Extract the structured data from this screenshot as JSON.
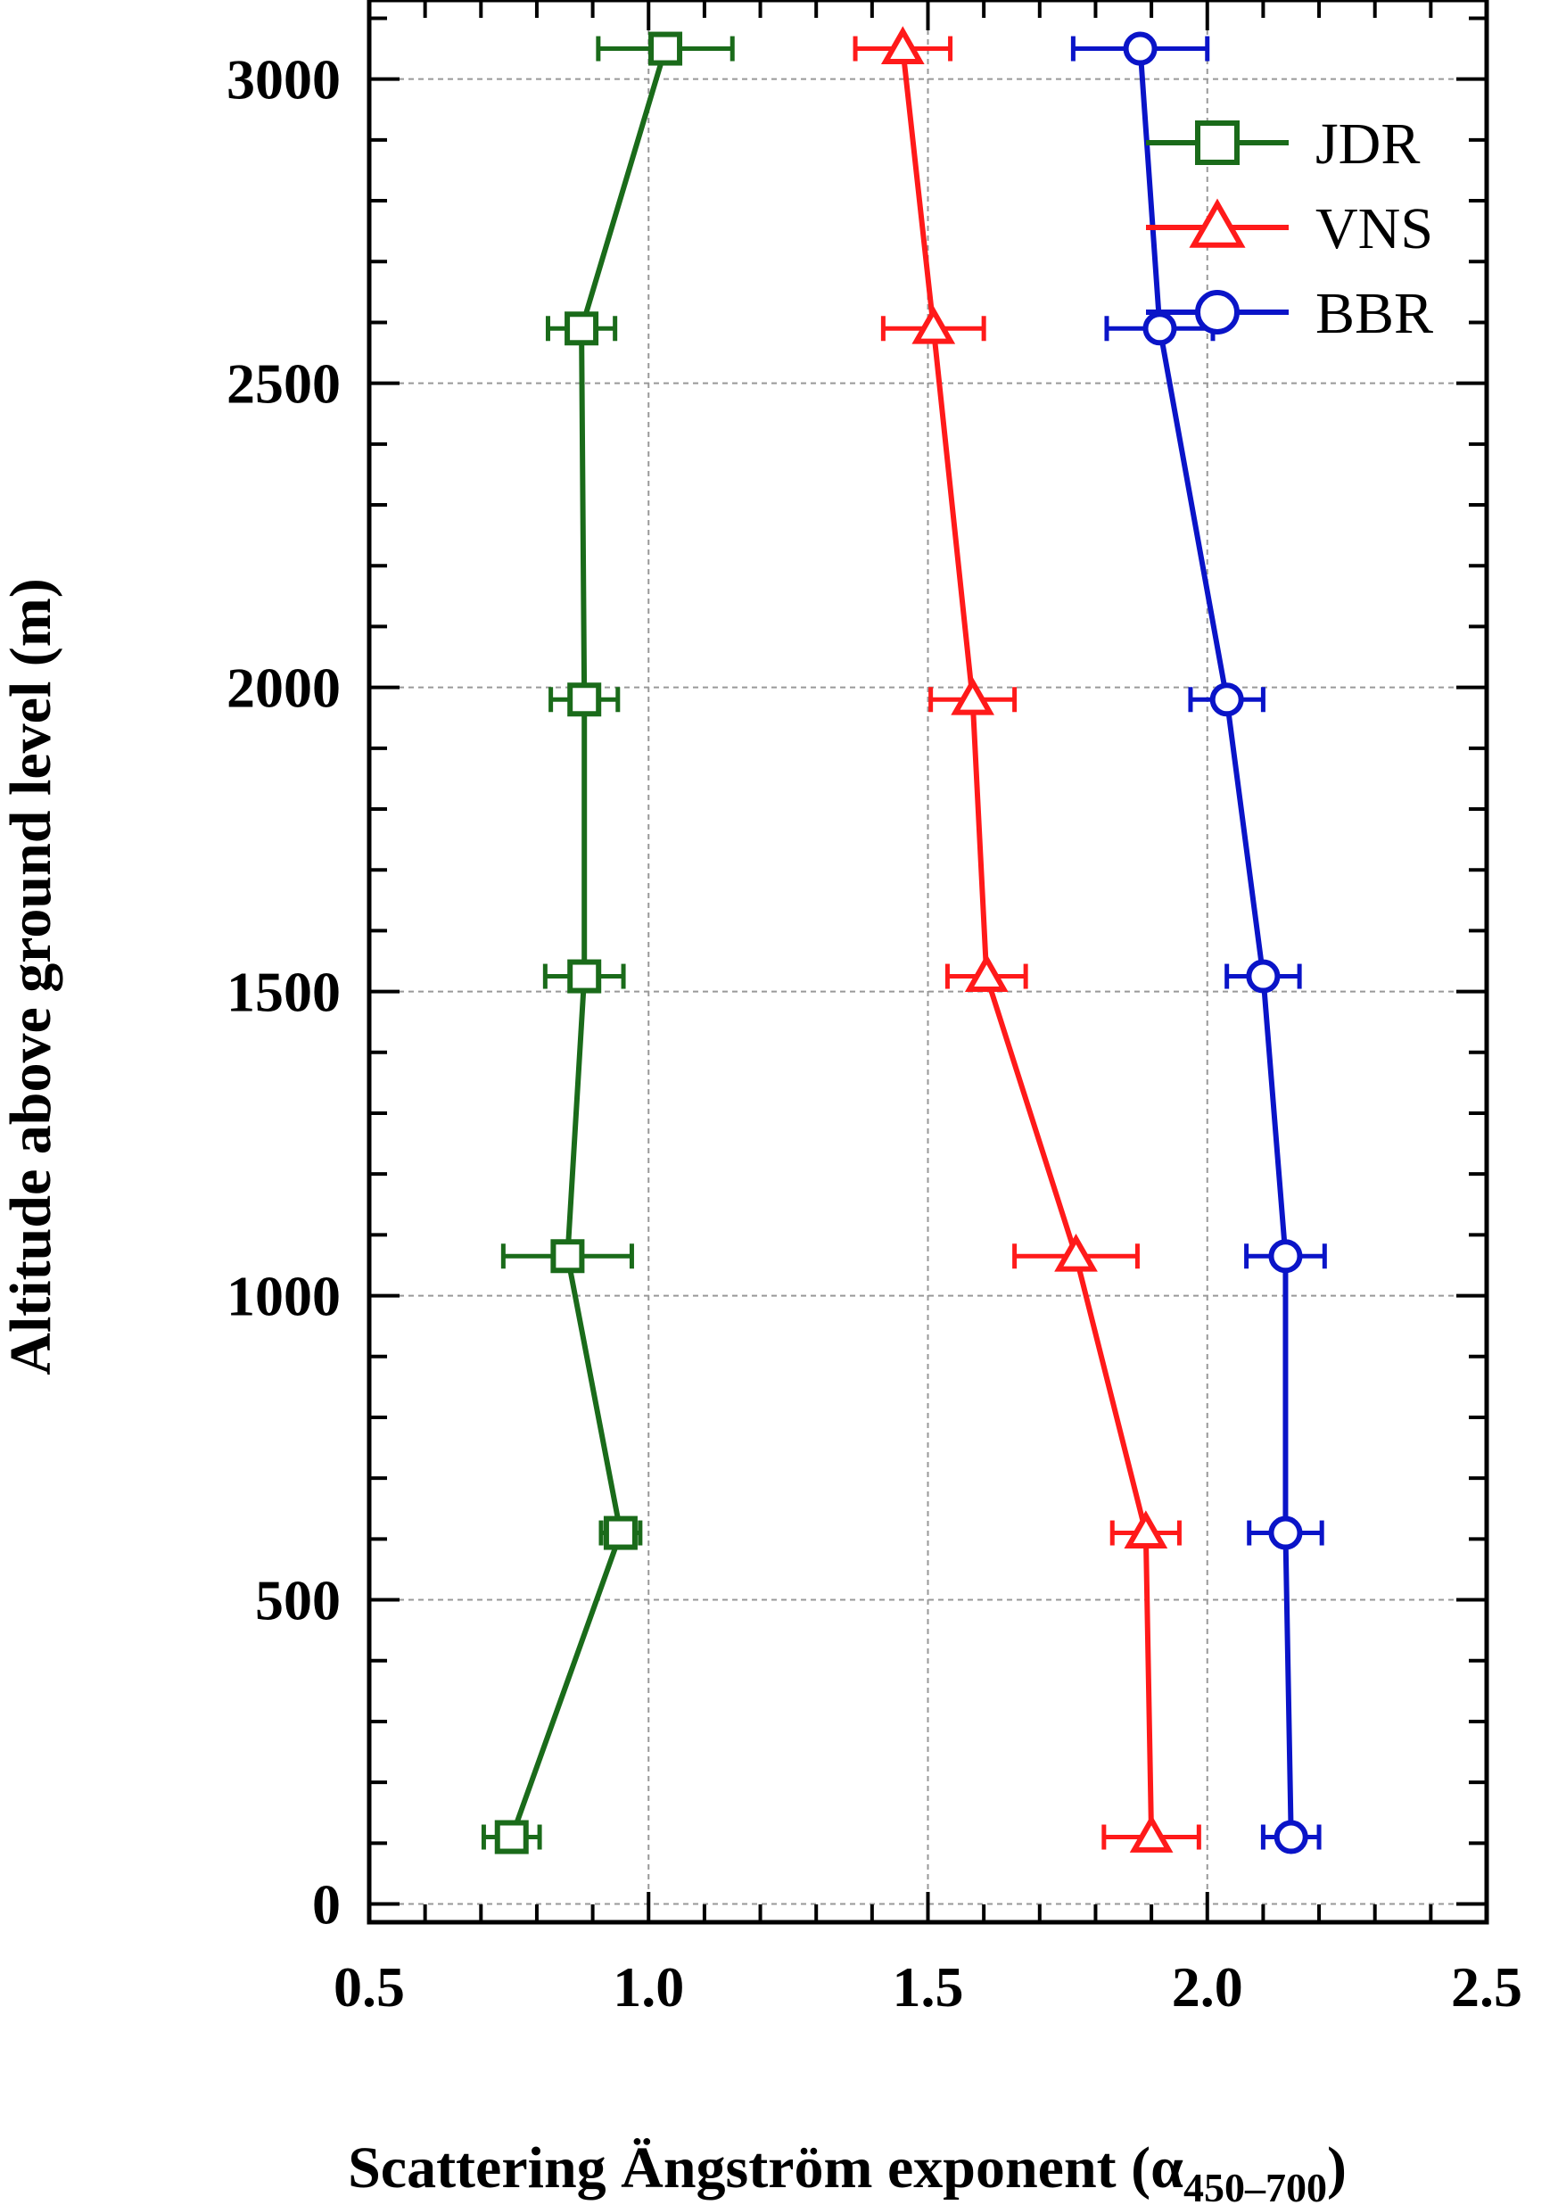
{
  "chart_data": {
    "type": "line",
    "xlabel": "Scattering Ängström exponent (α",
    "xlabel_subscript": "450–700",
    "xlabel_close": ")",
    "ylabel": "Altitude above ground level (m)",
    "xlim": [
      0.5,
      2.5
    ],
    "ylim": [
      -30,
      3130
    ],
    "x_ticks": [
      0.5,
      1.0,
      1.5,
      2.0,
      2.5
    ],
    "x_tick_labels": [
      "0.5",
      "1.0",
      "1.5",
      "2.0",
      "2.5"
    ],
    "y_ticks": [
      0,
      500,
      1000,
      1500,
      2000,
      2500,
      3000
    ],
    "y_tick_labels": [
      "0",
      "500",
      "1000",
      "1500",
      "2000",
      "2500",
      "3000"
    ],
    "grid": true,
    "legend_position": "top-right",
    "series": [
      {
        "name": "JDR",
        "color": "#1a6b1a",
        "marker": "square",
        "points": [
          {
            "x": 1.03,
            "y": 3050,
            "xerr": 0.12
          },
          {
            "x": 0.88,
            "y": 2590,
            "xerr": 0.06
          },
          {
            "x": 0.885,
            "y": 1980,
            "xerr": 0.06
          },
          {
            "x": 0.885,
            "y": 1525,
            "xerr": 0.07
          },
          {
            "x": 0.855,
            "y": 1065,
            "xerr": 0.115
          },
          {
            "x": 0.95,
            "y": 610,
            "xerr": 0.035
          },
          {
            "x": 0.755,
            "y": 110,
            "xerr": 0.05
          }
        ]
      },
      {
        "name": "VNS",
        "color": "#ff1a1a",
        "marker": "triangle",
        "points": [
          {
            "x": 1.455,
            "y": 3050,
            "xerr": 0.085
          },
          {
            "x": 1.51,
            "y": 2590,
            "xerr": 0.09
          },
          {
            "x": 1.58,
            "y": 1980,
            "xerr": 0.075
          },
          {
            "x": 1.605,
            "y": 1525,
            "xerr": 0.07
          },
          {
            "x": 1.765,
            "y": 1065,
            "xerr": 0.11
          },
          {
            "x": 1.89,
            "y": 610,
            "xerr": 0.06
          },
          {
            "x": 1.9,
            "y": 110,
            "xerr": 0.085
          }
        ]
      },
      {
        "name": "BBR",
        "color": "#0a14c8",
        "marker": "circle",
        "points": [
          {
            "x": 1.88,
            "y": 3050,
            "xerr": 0.12
          },
          {
            "x": 1.915,
            "y": 2590,
            "xerr": 0.095
          },
          {
            "x": 2.035,
            "y": 1980,
            "xerr": 0.065
          },
          {
            "x": 2.1,
            "y": 1525,
            "xerr": 0.065
          },
          {
            "x": 2.14,
            "y": 1065,
            "xerr": 0.07
          },
          {
            "x": 2.14,
            "y": 610,
            "xerr": 0.065
          },
          {
            "x": 2.15,
            "y": 110,
            "xerr": 0.05
          }
        ]
      }
    ]
  }
}
